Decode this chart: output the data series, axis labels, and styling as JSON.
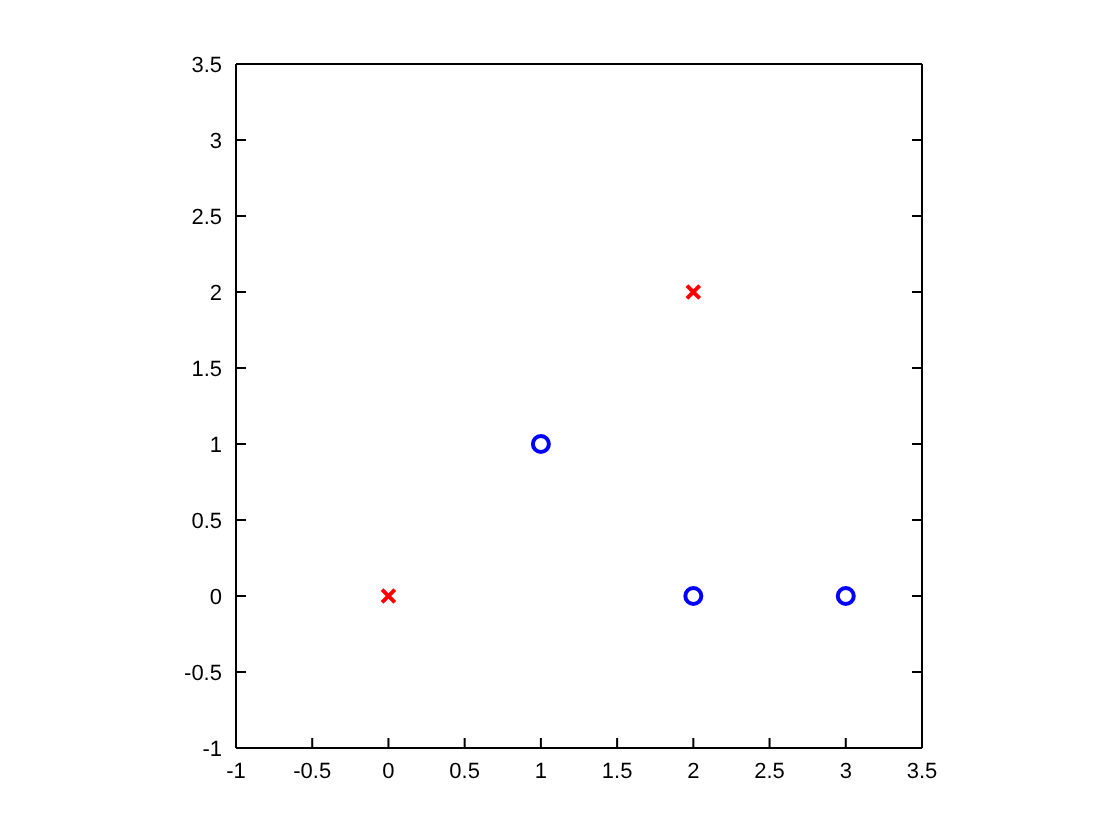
{
  "chart_data": {
    "type": "scatter",
    "series": [
      {
        "color": "#ff0000",
        "marker": "cross",
        "x": [
          0,
          2
        ],
        "values": [
          0,
          2
        ]
      },
      {
        "color": "#0000ff",
        "marker": "circle",
        "x": [
          1,
          2,
          3
        ],
        "values": [
          1,
          0,
          0
        ]
      }
    ],
    "xlim": [
      -1,
      3.5
    ],
    "xticks": [
      -1,
      -0.5,
      0,
      0.5,
      1,
      1.5,
      2,
      2.5,
      3,
      3.5
    ],
    "ylim": [
      -1,
      3.5
    ],
    "yticks": [
      -1,
      -0.5,
      0,
      0.5,
      1,
      1.5,
      2,
      2.5,
      3,
      3.5
    ]
  }
}
